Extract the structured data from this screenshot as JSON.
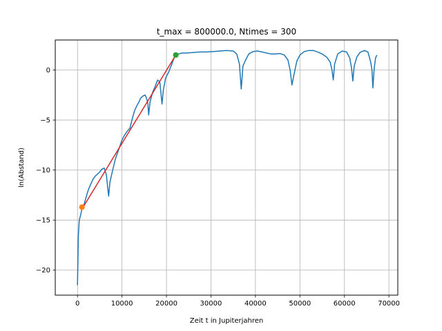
{
  "chart_data": {
    "type": "line",
    "title": "t_max = 800000.0, Ntimes = 300",
    "xlabel": "Zeit t in Jupiterjahren",
    "ylabel": "ln(Abstand)",
    "xlim": [
      -5000,
      72000
    ],
    "ylim": [
      -22.5,
      3.0
    ],
    "x_ticks": [
      0,
      10000,
      20000,
      30000,
      40000,
      50000,
      60000,
      70000
    ],
    "x_tick_labels": [
      "0",
      "10000",
      "20000",
      "30000",
      "40000",
      "50000",
      "60000",
      "70000"
    ],
    "y_ticks": [
      -20,
      -15,
      -10,
      -5,
      0
    ],
    "y_tick_labels": [
      "−20",
      "−15",
      "−10",
      "−5",
      "0"
    ],
    "grid": true,
    "colors": {
      "series": "#1f77b4",
      "fit": "#d62728",
      "start_marker": "#ff7f0e",
      "end_marker": "#2ca02c",
      "grid": "#b0b0b0"
    },
    "series": [
      {
        "values": [
          [
            0,
            -21.5
          ],
          [
            200,
            -16.5
          ],
          [
            400,
            -15.0
          ],
          [
            700,
            -14.5
          ],
          [
            1000,
            -13.9
          ],
          [
            1500,
            -13.4
          ],
          [
            2000,
            -12.6
          ],
          [
            2500,
            -11.9
          ],
          [
            3000,
            -11.4
          ],
          [
            3500,
            -10.9
          ],
          [
            4000,
            -10.6
          ],
          [
            4500,
            -10.4
          ],
          [
            5000,
            -10.2
          ],
          [
            5500,
            -9.9
          ],
          [
            6000,
            -9.8
          ],
          [
            6500,
            -10.5
          ],
          [
            6800,
            -11.8
          ],
          [
            7000,
            -12.6
          ],
          [
            7300,
            -11.2
          ],
          [
            7800,
            -10.2
          ],
          [
            8500,
            -8.9
          ],
          [
            9300,
            -7.9
          ],
          [
            10000,
            -7.0
          ],
          [
            10600,
            -6.5
          ],
          [
            11200,
            -6.1
          ],
          [
            11800,
            -5.8
          ],
          [
            12300,
            -4.9
          ],
          [
            12800,
            -4.1
          ],
          [
            13300,
            -3.6
          ],
          [
            13800,
            -3.2
          ],
          [
            14200,
            -2.8
          ],
          [
            14700,
            -2.6
          ],
          [
            15200,
            -2.5
          ],
          [
            15500,
            -2.8
          ],
          [
            15800,
            -3.3
          ],
          [
            16000,
            -4.5
          ],
          [
            16300,
            -3.2
          ],
          [
            16900,
            -2.2
          ],
          [
            17500,
            -1.6
          ],
          [
            18000,
            -1.0
          ],
          [
            18500,
            -1.2
          ],
          [
            18800,
            -2.5
          ],
          [
            19000,
            -3.4
          ],
          [
            19300,
            -2.0
          ],
          [
            19800,
            -0.8
          ],
          [
            20500,
            -0.2
          ],
          [
            21200,
            0.6
          ],
          [
            21800,
            1.3
          ],
          [
            22100,
            1.5
          ],
          [
            22700,
            1.6
          ],
          [
            23500,
            1.7
          ],
          [
            24500,
            1.7
          ],
          [
            26000,
            1.75
          ],
          [
            27500,
            1.8
          ],
          [
            29000,
            1.8
          ],
          [
            30500,
            1.85
          ],
          [
            32000,
            1.9
          ],
          [
            33500,
            1.95
          ],
          [
            35000,
            1.9
          ],
          [
            35800,
            1.6
          ],
          [
            36400,
            0.6
          ],
          [
            36800,
            -1.9
          ],
          [
            37200,
            0.4
          ],
          [
            37800,
            1.0
          ],
          [
            38500,
            1.6
          ],
          [
            39500,
            1.85
          ],
          [
            40500,
            1.9
          ],
          [
            41500,
            1.8
          ],
          [
            42500,
            1.7
          ],
          [
            43500,
            1.6
          ],
          [
            44500,
            1.6
          ],
          [
            45500,
            1.65
          ],
          [
            46500,
            1.5
          ],
          [
            47300,
            1.0
          ],
          [
            47800,
            0.0
          ],
          [
            48200,
            -1.5
          ],
          [
            48600,
            -0.6
          ],
          [
            49300,
            0.9
          ],
          [
            50000,
            1.5
          ],
          [
            51000,
            1.85
          ],
          [
            52000,
            1.95
          ],
          [
            53000,
            1.95
          ],
          [
            54000,
            1.8
          ],
          [
            55000,
            1.6
          ],
          [
            56000,
            1.3
          ],
          [
            56800,
            0.8
          ],
          [
            57200,
            0.0
          ],
          [
            57500,
            -1.0
          ],
          [
            57800,
            0.6
          ],
          [
            58500,
            1.6
          ],
          [
            59500,
            1.9
          ],
          [
            60500,
            1.8
          ],
          [
            61200,
            1.2
          ],
          [
            61600,
            0.2
          ],
          [
            61900,
            -1.1
          ],
          [
            62200,
            0.4
          ],
          [
            62800,
            1.3
          ],
          [
            63500,
            1.75
          ],
          [
            64500,
            1.95
          ],
          [
            65300,
            1.8
          ],
          [
            65900,
            0.8
          ],
          [
            66200,
            0.0
          ],
          [
            66400,
            -1.8
          ],
          [
            66700,
            0.2
          ],
          [
            67000,
            1.2
          ],
          [
            67300,
            1.5
          ]
        ]
      }
    ],
    "fit_line": {
      "x": [
        1000,
        22100
      ],
      "y": [
        -13.9,
        1.5
      ]
    },
    "markers": [
      {
        "x": 1000,
        "y": -13.7
      },
      {
        "x": 22100,
        "y": 1.5
      }
    ]
  }
}
